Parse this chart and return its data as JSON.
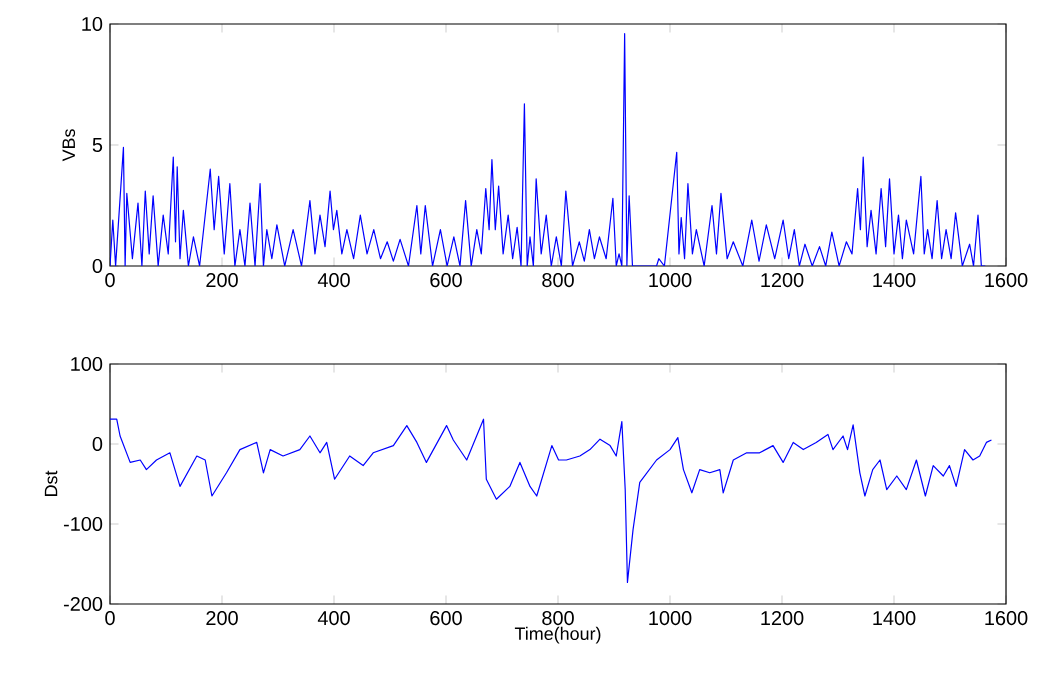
{
  "chart_data": [
    {
      "type": "line",
      "ylabel": "VBs",
      "color": "#0000ff",
      "xlim": [
        0,
        1600
      ],
      "ylim": [
        0,
        10
      ],
      "xticks": [
        0,
        200,
        400,
        600,
        800,
        1000,
        1200,
        1400,
        1600
      ],
      "yticks": [
        0,
        5,
        10
      ],
      "x": [
        0,
        5,
        10,
        24,
        27,
        30,
        40,
        50,
        57,
        63,
        70,
        77,
        86,
        95,
        104,
        113,
        117,
        120,
        125,
        131,
        140,
        149,
        160,
        179,
        186,
        194,
        204,
        214,
        223,
        232,
        241,
        250,
        259,
        268,
        274,
        280,
        289,
        298,
        312,
        327,
        342,
        357,
        366,
        375,
        384,
        393,
        399,
        405,
        414,
        423,
        435,
        447,
        459,
        471,
        483,
        495,
        506,
        518,
        533,
        548,
        555,
        563,
        576,
        590,
        602,
        614,
        625,
        635,
        645,
        655,
        663,
        671,
        677,
        682,
        688,
        694,
        702,
        711,
        719,
        727,
        734,
        740,
        745,
        750,
        756,
        761,
        770,
        779,
        788,
        797,
        806,
        814,
        826,
        838,
        847,
        856,
        865,
        874,
        886,
        898,
        904,
        909,
        914,
        919,
        923,
        927,
        933,
        976,
        980,
        990,
        1012,
        1016,
        1020,
        1026,
        1032,
        1040,
        1047,
        1061,
        1075,
        1083,
        1091,
        1102,
        1113,
        1130,
        1146,
        1159,
        1172,
        1187,
        1202,
        1212,
        1222,
        1231,
        1241,
        1254,
        1267,
        1278,
        1289,
        1302,
        1315,
        1325,
        1335,
        1340,
        1345,
        1352,
        1359,
        1368,
        1377,
        1385,
        1392,
        1400,
        1408,
        1415,
        1422,
        1435,
        1448,
        1454,
        1460,
        1468,
        1477,
        1485,
        1493,
        1502,
        1510,
        1522,
        1535,
        1542,
        1550,
        1556,
        1563
      ],
      "values": [
        0,
        1.9,
        0,
        4.9,
        0,
        3.0,
        0.3,
        2.6,
        0,
        3.1,
        0.5,
        2.9,
        0,
        2.1,
        0.5,
        4.5,
        1,
        4.1,
        0.3,
        2.3,
        0,
        1.2,
        0,
        4.0,
        1.5,
        3.7,
        0.5,
        3.4,
        0,
        1.5,
        0,
        2.6,
        0,
        3.4,
        0,
        1.5,
        0.3,
        1.7,
        0,
        1.5,
        0,
        2.7,
        0.5,
        2.1,
        0.8,
        3.1,
        1.5,
        2.3,
        0.5,
        1.5,
        0.3,
        2.1,
        0.5,
        1.5,
        0.3,
        1.0,
        0.2,
        1.1,
        0,
        2.5,
        0.5,
        2.5,
        0,
        1.5,
        0,
        1.2,
        0,
        2.7,
        0,
        1.5,
        0.5,
        3.2,
        1.5,
        4.4,
        1.5,
        3.3,
        0.5,
        2.1,
        0.3,
        1.6,
        0,
        6.7,
        0,
        1.2,
        0,
        3.6,
        0.5,
        2.1,
        0,
        1.2,
        0,
        3.1,
        0,
        1.0,
        0.2,
        1.5,
        0.3,
        1.2,
        0.3,
        2.8,
        0,
        0.5,
        0,
        9.6,
        0,
        2.9,
        0,
        0,
        0.3,
        0,
        4.7,
        0.5,
        2.0,
        0.3,
        3.4,
        0.5,
        1.5,
        0,
        2.5,
        0.5,
        3.0,
        0.3,
        1.0,
        0,
        1.9,
        0.2,
        1.7,
        0.3,
        1.9,
        0.3,
        1.5,
        0,
        0.9,
        0,
        0.8,
        0,
        1.4,
        0,
        1.0,
        0.5,
        3.2,
        1.5,
        4.5,
        0.8,
        2.3,
        0.5,
        3.2,
        0.8,
        3.6,
        0.5,
        2.1,
        0.3,
        1.9,
        0.5,
        3.7,
        0.5,
        1.5,
        0.3,
        2.7,
        0.3,
        1.5,
        0.3,
        2.2,
        0,
        0.9,
        0,
        2.1,
        0,
        0
      ]
    },
    {
      "type": "line",
      "xlabel": "Time(hour)",
      "ylabel": "Dst",
      "color": "#0000ff",
      "xlim": [
        0,
        1600
      ],
      "ylim": [
        -200,
        100
      ],
      "xticks": [
        0,
        200,
        400,
        600,
        800,
        1000,
        1200,
        1400,
        1600
      ],
      "yticks": [
        -200,
        -100,
        0,
        100
      ],
      "x": [
        0,
        12,
        18,
        36,
        54,
        65,
        83,
        107,
        125,
        155,
        170,
        182,
        208,
        232,
        262,
        274,
        286,
        309,
        339,
        357,
        375,
        387,
        401,
        428,
        452,
        470,
        506,
        530,
        548,
        565,
        601,
        613,
        637,
        667,
        672,
        690,
        714,
        732,
        750,
        762,
        789,
        801,
        815,
        839,
        857,
        875,
        893,
        904,
        914,
        920,
        924,
        934,
        946,
        976,
        1000,
        1014,
        1024,
        1039,
        1053,
        1071,
        1089,
        1095,
        1113,
        1137,
        1160,
        1184,
        1202,
        1220,
        1238,
        1261,
        1282,
        1291,
        1309,
        1317,
        1327,
        1339,
        1348,
        1362,
        1375,
        1387,
        1405,
        1422,
        1440,
        1456,
        1470,
        1488,
        1499,
        1511,
        1526,
        1541,
        1553,
        1565,
        1574
      ],
      "values": [
        31,
        31,
        10,
        -23,
        -20,
        -32,
        -20,
        -11,
        -53,
        -15,
        -20,
        -65,
        -36,
        -7,
        2,
        -36,
        -7,
        -15,
        -7,
        10,
        -11,
        2,
        -44,
        -15,
        -27,
        -11,
        -2,
        23,
        2,
        -23,
        23,
        5,
        -20,
        31,
        -44,
        -69,
        -53,
        -23,
        -53,
        -65,
        -2,
        -20,
        -20,
        -15,
        -7,
        6,
        -2,
        -15,
        28,
        -57,
        -173,
        -107,
        -48,
        -20,
        -7,
        8,
        -32,
        -61,
        -32,
        -36,
        -32,
        -61,
        -20,
        -11,
        -11,
        -2,
        -23,
        2,
        -7,
        2,
        12,
        -7,
        10,
        -7,
        24,
        -36,
        -65,
        -32,
        -20,
        -57,
        -40,
        -57,
        -20,
        -65,
        -27,
        -40,
        -27,
        -53,
        -7,
        -20,
        -15,
        2,
        5
      ]
    }
  ]
}
